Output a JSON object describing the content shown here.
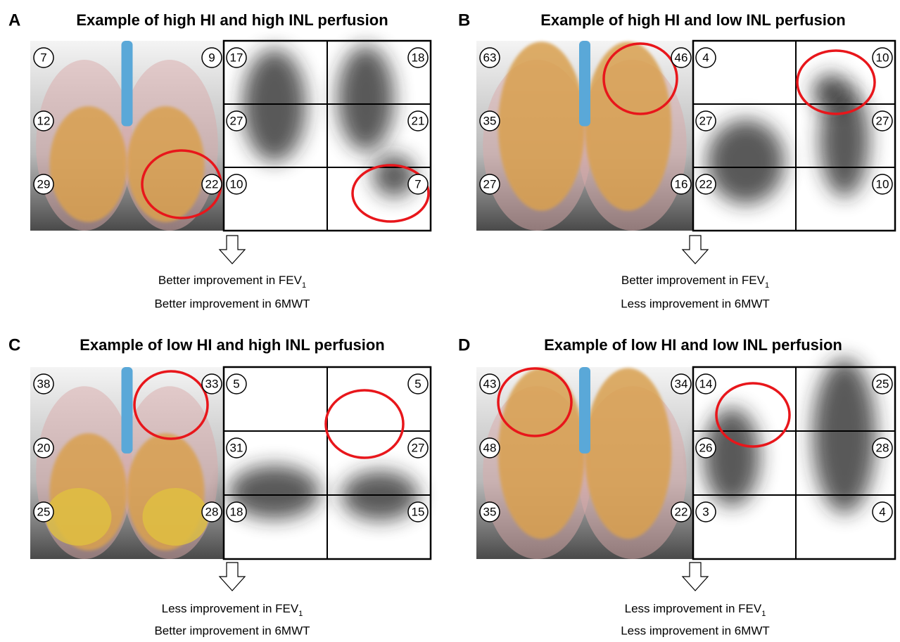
{
  "panels": [
    {
      "letter": "A",
      "title": "Example of high HI and high INL perfusion",
      "ct": [
        {
          "left": 7,
          "right": 9
        },
        {
          "left": 12
        },
        {
          "left": 29,
          "right": 22
        }
      ],
      "perfusion": [
        {
          "left": 17,
          "right": 18
        },
        {
          "left": 27,
          "right": 21
        },
        {
          "left": 10,
          "right": 7
        }
      ],
      "outcome_fev": {
        "text": "Better improvement in FEV",
        "sub": "1"
      },
      "outcome_6mwt": "Better improvement in 6MWT"
    },
    {
      "letter": "B",
      "title": "Example of high HI and low INL perfusion",
      "ct": [
        {
          "left": 63,
          "right": 46
        },
        {
          "left": 35
        },
        {
          "left": 27,
          "right": 16
        }
      ],
      "perfusion": [
        {
          "left": 4,
          "right": 10
        },
        {
          "left": 27,
          "right": 27
        },
        {
          "left": 22,
          "right": 10
        }
      ],
      "outcome_fev": {
        "text": "Better improvement in FEV",
        "sub": "1"
      },
      "outcome_6mwt": "Less improvement in 6MWT"
    },
    {
      "letter": "C",
      "title": "Example of low HI and high INL perfusion",
      "ct": [
        {
          "left": 38,
          "right": 33
        },
        {
          "left": 20
        },
        {
          "left": 25,
          "right": 28
        }
      ],
      "perfusion": [
        {
          "left": 5,
          "right": 5
        },
        {
          "left": 31,
          "right": 27
        },
        {
          "left": 18,
          "right": 15
        }
      ],
      "outcome_fev": {
        "text": "Less improvement in FEV",
        "sub": "1"
      },
      "outcome_6mwt": "Better improvement in 6MWT"
    },
    {
      "letter": "D",
      "title": "Example of low HI and low INL perfusion",
      "ct": [
        {
          "left": 43,
          "right": 34
        },
        {
          "left": 48
        },
        {
          "left": 35,
          "right": 22
        }
      ],
      "perfusion": [
        {
          "left": 14,
          "right": 25
        },
        {
          "left": 26,
          "right": 28
        },
        {
          "left": 3,
          "right": 4
        }
      ],
      "outcome_fev": {
        "text": "Less improvement in FEV",
        "sub": "1"
      },
      "outcome_6mwt": "Less improvement in 6MWT"
    }
  ]
}
